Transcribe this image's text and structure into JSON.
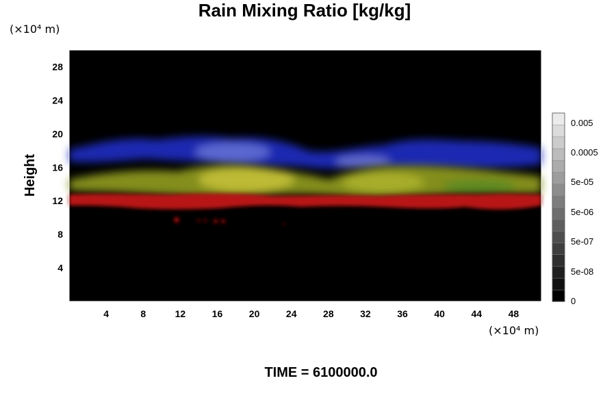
{
  "chart_data": {
    "type": "heatmap",
    "title": "Rain Mixing Ratio [kg/kg]",
    "ylabel": "Height",
    "x_unit": "(×10⁴ m)",
    "y_unit": "(×10⁴ m)",
    "xlim": [
      0,
      51
    ],
    "ylim": [
      0,
      30
    ],
    "x_ticks": [
      4,
      8,
      12,
      16,
      20,
      24,
      28,
      32,
      36,
      40,
      44,
      48
    ],
    "y_ticks": [
      4,
      8,
      12,
      16,
      20,
      24,
      28
    ],
    "colorbar": {
      "scale": "log",
      "tick_labels": [
        "0.005",
        "0.0005",
        "5e-05",
        "5e-06",
        "5e-07",
        "5e-08",
        "0"
      ],
      "levels": 16
    },
    "layers": [
      {
        "color": "#1c2cc8",
        "label_hint": "blue",
        "y_center": 17.5
      },
      {
        "color": "#9aa62a",
        "label_hint": "yellow-green",
        "y_center": 14.0
      },
      {
        "color": "#b81212",
        "label_hint": "red",
        "y_center": 12.0
      }
    ],
    "footer": "TIME = 6100000.0",
    "colors": {
      "background": "#000000",
      "frame": "#ffffff"
    }
  }
}
